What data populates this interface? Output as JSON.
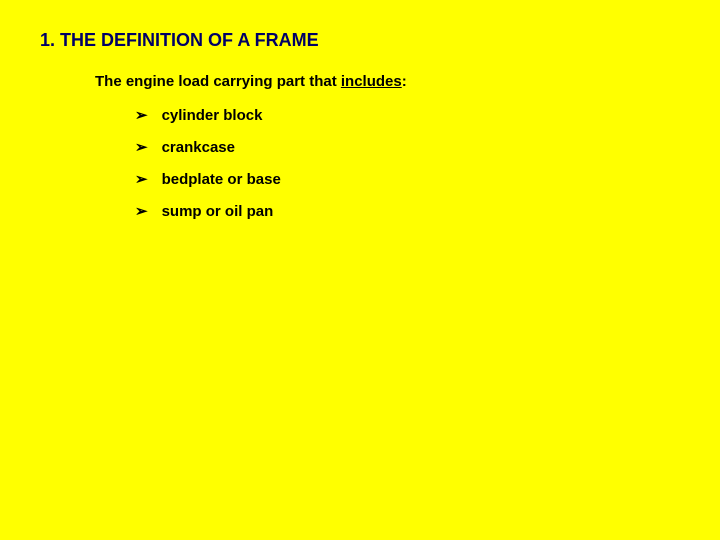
{
  "slide": {
    "background_color": "#ffff00",
    "heading": {
      "text": "1. THE DEFINITION OF A FRAME",
      "color": "#000066",
      "fontsize": 18,
      "font_weight": "bold"
    },
    "intro": {
      "prefix": "The engine load carrying part that ",
      "underlined": "includes",
      "suffix": ":",
      "color": "#000000",
      "fontsize": 15,
      "font_weight": "bold"
    },
    "bullet_char": "➢",
    "bullet_color": "#000000",
    "items": [
      {
        "label": "cylinder block"
      },
      {
        "label": "crankcase"
      },
      {
        "label": "bedplate or base"
      },
      {
        "label": "sump or oil pan"
      }
    ],
    "item_style": {
      "color": "#000000",
      "fontsize": 15,
      "font_weight": "bold"
    }
  }
}
